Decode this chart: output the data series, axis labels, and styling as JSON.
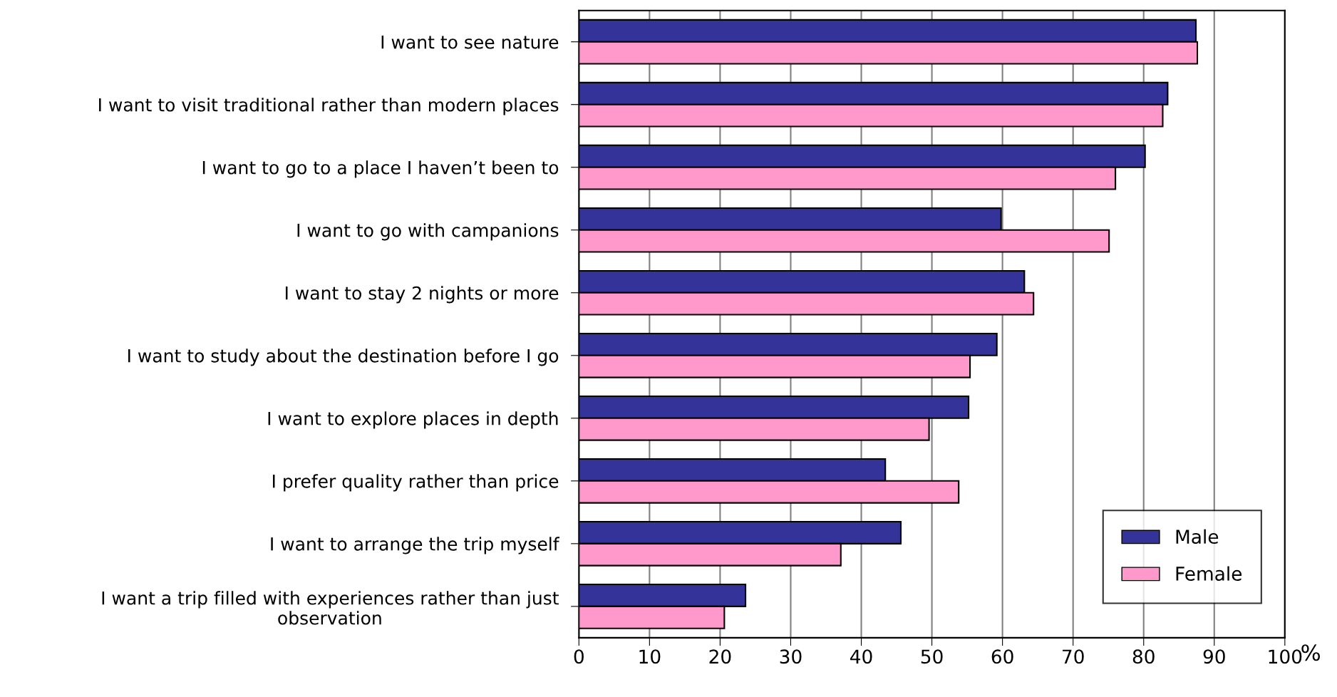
{
  "chart_data": {
    "type": "bar",
    "orientation": "horizontal",
    "categories": [
      "I want to see nature",
      "I want to visit traditional rather than modern places",
      "I want to go to a place I haven’t been to",
      "I want to go with campanions",
      "I want to stay 2 nights or more",
      "I want to study about the destination before I go",
      "I want to explore places in depth",
      "I prefer quality rather than price",
      "I want to arrange the trip myself",
      "I want a trip filled with experiences rather than just\nobservation"
    ],
    "series": [
      {
        "name": "Male",
        "color": "#333399",
        "values": [
          87.4,
          83.4,
          80.2,
          59.8,
          63.1,
          59.2,
          55.2,
          43.4,
          45.6,
          23.6
        ]
      },
      {
        "name": "Female",
        "color": "#ff99cc",
        "values": [
          87.6,
          82.7,
          76.0,
          75.1,
          64.4,
          55.4,
          49.6,
          53.8,
          37.1,
          20.6
        ]
      }
    ],
    "xlabel": "%",
    "xlim": [
      0,
      100
    ],
    "xticks": [
      0,
      10,
      20,
      30,
      40,
      50,
      60,
      70,
      80,
      90,
      100
    ],
    "grid": "x",
    "legend": "bottom right"
  }
}
